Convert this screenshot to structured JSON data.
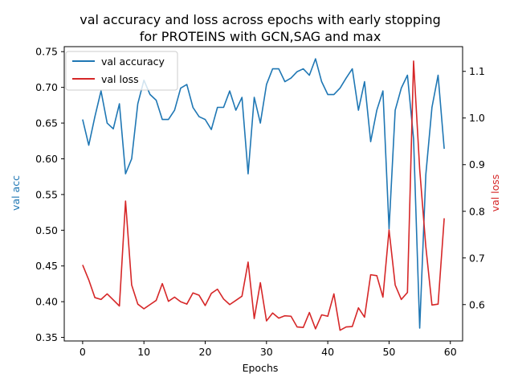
{
  "chart_data": {
    "type": "line",
    "title_line1": "val accuracy and loss across epochs with early stopping",
    "title_line2": "for PROTEINS with GCN,SAG and max",
    "xlabel": "Epochs",
    "ylabel_left": "val acc",
    "ylabel_right": "val loss",
    "xlim": [
      -3,
      62
    ],
    "ylim_left": [
      0.345,
      0.757
    ],
    "ylim_right": [
      0.522,
      1.153
    ],
    "xticks": [
      0,
      10,
      20,
      30,
      40,
      50,
      60
    ],
    "yticks_left": [
      0.35,
      0.4,
      0.45,
      0.5,
      0.55,
      0.6,
      0.65,
      0.7,
      0.75
    ],
    "yticks_left_labels": [
      "0.35",
      "0.40",
      "0.45",
      "0.50",
      "0.55",
      "0.60",
      "0.65",
      "0.70",
      "0.75"
    ],
    "yticks_right": [
      0.6,
      0.7,
      0.8,
      0.9,
      1.0,
      1.1
    ],
    "yticks_right_labels": [
      "0.6",
      "0.7",
      "0.8",
      "0.9",
      "1.0",
      "1.1"
    ],
    "legend_position": "top-left",
    "grid": false,
    "colors": {
      "left_axis": "#1f77b4",
      "right_axis": "#d62728"
    },
    "series": [
      {
        "name": "val accuracy",
        "axis": "left",
        "color": "#1f77b4",
        "x": [
          0,
          1,
          2,
          3,
          4,
          5,
          6,
          7,
          8,
          9,
          10,
          11,
          12,
          13,
          14,
          15,
          16,
          17,
          18,
          19,
          20,
          21,
          22,
          23,
          24,
          25,
          26,
          27,
          28,
          29,
          30,
          31,
          32,
          33,
          34,
          35,
          36,
          37,
          38,
          39,
          40,
          41,
          42,
          43,
          44,
          45,
          46,
          47,
          48,
          49,
          50,
          51,
          52,
          53,
          54,
          55,
          56,
          57,
          58,
          59
        ],
        "values": [
          0.655,
          0.619,
          0.659,
          0.695,
          0.65,
          0.642,
          0.677,
          0.579,
          0.6,
          0.677,
          0.71,
          0.69,
          0.682,
          0.655,
          0.655,
          0.668,
          0.699,
          0.704,
          0.672,
          0.659,
          0.655,
          0.641,
          0.672,
          0.672,
          0.695,
          0.668,
          0.686,
          0.579,
          0.686,
          0.65,
          0.704,
          0.726,
          0.726,
          0.708,
          0.713,
          0.722,
          0.726,
          0.717,
          0.74,
          0.708,
          0.69,
          0.69,
          0.699,
          0.713,
          0.726,
          0.668,
          0.708,
          0.624,
          0.668,
          0.695,
          0.502,
          0.668,
          0.699,
          0.717,
          0.628,
          0.363,
          0.578,
          0.672,
          0.717,
          0.614
        ]
      },
      {
        "name": "val loss",
        "axis": "right",
        "color": "#d62728",
        "x": [
          0,
          1,
          2,
          3,
          4,
          5,
          6,
          7,
          8,
          9,
          10,
          11,
          12,
          13,
          14,
          15,
          16,
          17,
          18,
          19,
          20,
          21,
          22,
          23,
          24,
          25,
          26,
          27,
          28,
          29,
          30,
          31,
          32,
          33,
          34,
          35,
          36,
          37,
          38,
          39,
          40,
          41,
          42,
          43,
          44,
          45,
          46,
          47,
          48,
          49,
          50,
          51,
          52,
          53,
          54,
          55,
          56,
          57,
          58,
          59
        ],
        "values": [
          0.685,
          0.653,
          0.615,
          0.611,
          0.623,
          0.61,
          0.597,
          0.822,
          0.642,
          0.601,
          0.591,
          0.6,
          0.609,
          0.645,
          0.607,
          0.616,
          0.606,
          0.601,
          0.625,
          0.62,
          0.598,
          0.624,
          0.633,
          0.612,
          0.6,
          0.609,
          0.618,
          0.691,
          0.57,
          0.647,
          0.565,
          0.582,
          0.571,
          0.576,
          0.575,
          0.552,
          0.551,
          0.583,
          0.548,
          0.578,
          0.575,
          0.623,
          0.545,
          0.552,
          0.553,
          0.593,
          0.573,
          0.664,
          0.662,
          0.616,
          0.76,
          0.642,
          0.611,
          0.626,
          1.122,
          0.89,
          0.724,
          0.599,
          0.601,
          0.785
        ]
      }
    ]
  }
}
